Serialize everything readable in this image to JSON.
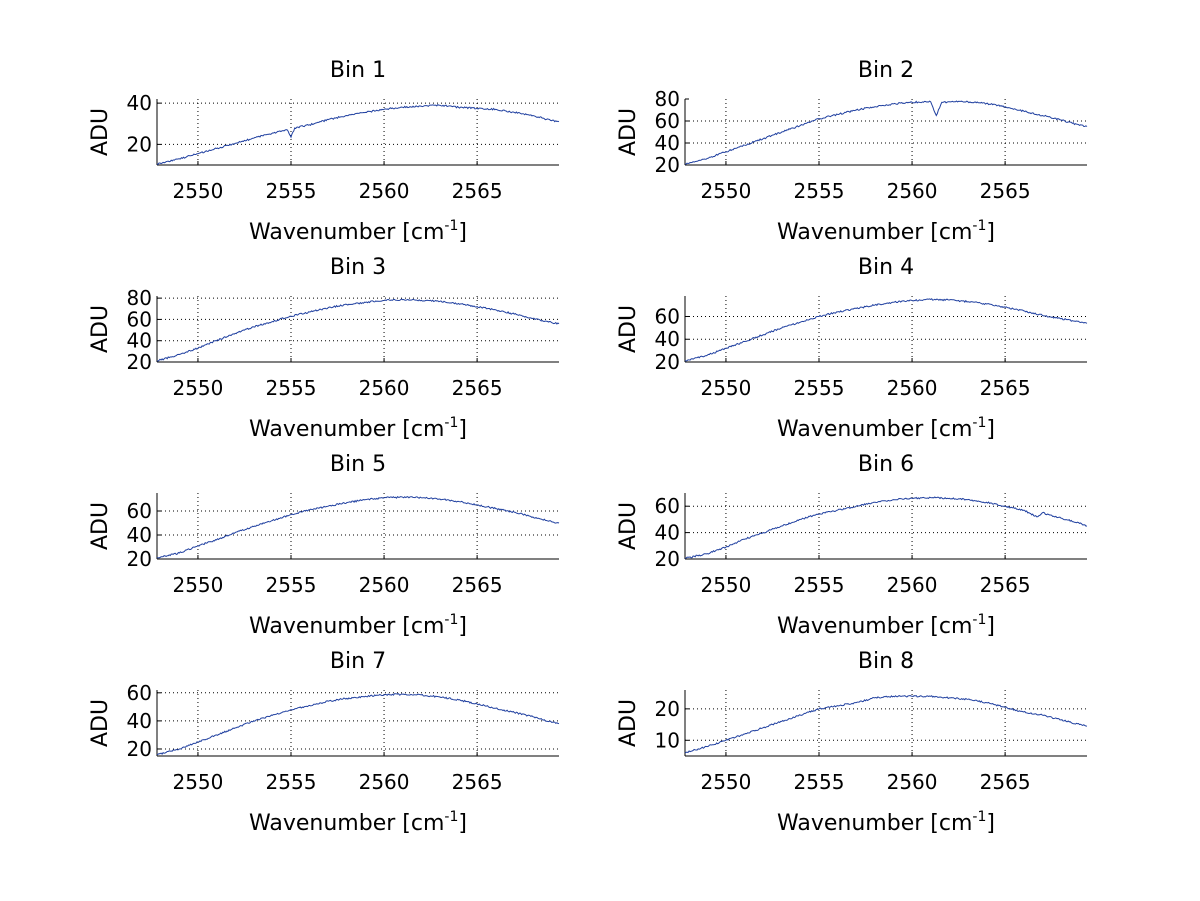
{
  "colors": {
    "series": "#2040a0",
    "axis": "#000000",
    "background": "#ffffff"
  },
  "chart_data": [
    {
      "type": "line",
      "title": "Bin 1",
      "xlabel": "Wavenumber [cm",
      "xlabel_sup": "-1",
      "xlabel_end": "]",
      "ylabel": "ADU",
      "xlim": [
        2547.8,
        2569.4
      ],
      "ylim": [
        10,
        42
      ],
      "xticks": [
        2550,
        2555,
        2560,
        2565
      ],
      "xtick_labels": [
        "2550",
        "2555",
        "2560",
        "2565"
      ],
      "yticks": [
        20,
        40
      ],
      "ytick_labels": [
        "20",
        "40"
      ],
      "grid": true,
      "series": [
        {
          "name": "Bin 1",
          "x": [
            2547.8,
            2549,
            2550,
            2551,
            2552,
            2553,
            2554,
            2554.8,
            2555,
            2555.2,
            2556,
            2557,
            2558,
            2559,
            2560,
            2561,
            2562,
            2563,
            2564,
            2565,
            2566,
            2567,
            2568,
            2569,
            2569.4
          ],
          "y": [
            10.5,
            13,
            15.5,
            18,
            20.5,
            23,
            25.5,
            27,
            23.5,
            28,
            29.5,
            32,
            34,
            35.5,
            37,
            38,
            38.5,
            39,
            38,
            37.5,
            37,
            35.5,
            34,
            31.5,
            31
          ]
        }
      ]
    },
    {
      "type": "line",
      "title": "Bin 2",
      "xlabel": "Wavenumber [cm",
      "xlabel_sup": "-1",
      "xlabel_end": "]",
      "ylabel": "ADU",
      "xlim": [
        2547.8,
        2569.4
      ],
      "ylim": [
        20,
        80
      ],
      "xticks": [
        2550,
        2555,
        2560,
        2565
      ],
      "xtick_labels": [
        "2550",
        "2555",
        "2560",
        "2565"
      ],
      "yticks": [
        20,
        40,
        60,
        80
      ],
      "ytick_labels": [
        "20",
        "40",
        "60",
        "80"
      ],
      "grid": true,
      "series": [
        {
          "name": "Bin 2",
          "x": [
            2547.8,
            2549,
            2550,
            2551,
            2552,
            2553,
            2554,
            2555,
            2556,
            2557,
            2558,
            2559,
            2560,
            2561,
            2561.3,
            2561.6,
            2562,
            2563,
            2564,
            2565,
            2566,
            2567,
            2568,
            2569,
            2569.4
          ],
          "y": [
            21,
            26,
            32,
            38,
            44,
            50,
            56,
            62,
            66,
            70,
            73,
            75.5,
            77,
            77.5,
            65,
            77,
            77.5,
            77.5,
            76,
            73,
            69,
            65,
            61,
            56,
            55
          ]
        }
      ]
    },
    {
      "type": "line",
      "title": "Bin 3",
      "xlabel": "Wavenumber [cm",
      "xlabel_sup": "-1",
      "xlabel_end": "]",
      "ylabel": "ADU",
      "xlim": [
        2547.8,
        2569.4
      ],
      "ylim": [
        20,
        82
      ],
      "xticks": [
        2550,
        2555,
        2560,
        2565
      ],
      "xtick_labels": [
        "2550",
        "2555",
        "2560",
        "2565"
      ],
      "yticks": [
        20,
        40,
        60,
        80
      ],
      "ytick_labels": [
        "20",
        "40",
        "60",
        "80"
      ],
      "grid": true,
      "series": [
        {
          "name": "Bin 3",
          "x": [
            2547.8,
            2549,
            2550,
            2551,
            2552,
            2553,
            2554,
            2555,
            2556,
            2557,
            2558,
            2559,
            2560,
            2561,
            2562,
            2563,
            2564,
            2565,
            2566,
            2567,
            2568,
            2569,
            2569.4
          ],
          "y": [
            21,
            27,
            33,
            40,
            47,
            53,
            58,
            63,
            67,
            71,
            74,
            76,
            78,
            78.5,
            78,
            77,
            75,
            72,
            69,
            65,
            61,
            57,
            56
          ]
        }
      ]
    },
    {
      "type": "line",
      "title": "Bin 4",
      "xlabel": "Wavenumber [cm",
      "xlabel_sup": "-1",
      "xlabel_end": "]",
      "ylabel": "ADU",
      "xlim": [
        2547.8,
        2569.4
      ],
      "ylim": [
        20,
        78
      ],
      "xticks": [
        2550,
        2555,
        2560,
        2565
      ],
      "xtick_labels": [
        "2550",
        "2555",
        "2560",
        "2565"
      ],
      "yticks": [
        20,
        40,
        60
      ],
      "ytick_labels": [
        "20",
        "40",
        "60"
      ],
      "grid": true,
      "series": [
        {
          "name": "Bin 4",
          "x": [
            2547.8,
            2549,
            2550,
            2551,
            2552,
            2553,
            2554,
            2555,
            2556,
            2557,
            2558,
            2559,
            2560,
            2561,
            2562,
            2563,
            2564,
            2565,
            2566,
            2567,
            2568,
            2569,
            2569.4
          ],
          "y": [
            21,
            26,
            32,
            38,
            44,
            50,
            55,
            60,
            64,
            67,
            70,
            72.5,
            74,
            75,
            74.5,
            73,
            71,
            68,
            65,
            61,
            58,
            55,
            54
          ]
        }
      ]
    },
    {
      "type": "line",
      "title": "Bin 5",
      "xlabel": "Wavenumber [cm",
      "xlabel_sup": "-1",
      "xlabel_end": "]",
      "ylabel": "ADU",
      "xlim": [
        2547.8,
        2569.4
      ],
      "ylim": [
        20,
        75
      ],
      "xticks": [
        2550,
        2555,
        2560,
        2565
      ],
      "xtick_labels": [
        "2550",
        "2555",
        "2560",
        "2565"
      ],
      "yticks": [
        20,
        40,
        60
      ],
      "ytick_labels": [
        "20",
        "40",
        "60"
      ],
      "grid": true,
      "series": [
        {
          "name": "Bin 5",
          "x": [
            2547.8,
            2549,
            2550,
            2551,
            2552,
            2553,
            2554,
            2555,
            2556,
            2557,
            2558,
            2559,
            2560,
            2561,
            2562,
            2563,
            2564,
            2565,
            2566,
            2567,
            2568,
            2569,
            2569.4
          ],
          "y": [
            21,
            25,
            31,
            36,
            42,
            47,
            52,
            57,
            61,
            64,
            67,
            69.5,
            71,
            71.5,
            71,
            70,
            68,
            65,
            62,
            59,
            55,
            51,
            50
          ]
        }
      ]
    },
    {
      "type": "line",
      "title": "Bin 6",
      "xlabel": "Wavenumber [cm",
      "xlabel_sup": "-1",
      "xlabel_end": "]",
      "ylabel": "ADU",
      "xlim": [
        2547.8,
        2569.4
      ],
      "ylim": [
        20,
        70
      ],
      "xticks": [
        2550,
        2555,
        2560,
        2565
      ],
      "xtick_labels": [
        "2550",
        "2555",
        "2560",
        "2565"
      ],
      "yticks": [
        20,
        40,
        60
      ],
      "ytick_labels": [
        "20",
        "40",
        "60"
      ],
      "grid": true,
      "series": [
        {
          "name": "Bin 6",
          "x": [
            2547.8,
            2549,
            2550,
            2551,
            2552,
            2553,
            2554,
            2555,
            2556,
            2557,
            2558,
            2559,
            2560,
            2561,
            2562,
            2563,
            2564,
            2565,
            2566,
            2566.7,
            2567,
            2568,
            2569,
            2569.4
          ],
          "y": [
            20.5,
            24,
            29,
            35,
            40,
            45,
            50,
            54,
            57,
            60,
            63,
            65,
            66,
            66.5,
            66,
            65,
            63,
            60,
            57,
            52,
            55,
            51,
            47,
            45
          ]
        }
      ]
    },
    {
      "type": "line",
      "title": "Bin 7",
      "xlabel": "Wavenumber [cm",
      "xlabel_sup": "-1",
      "xlabel_end": "]",
      "ylabel": "ADU",
      "xlim": [
        2547.8,
        2569.4
      ],
      "ylim": [
        15,
        62
      ],
      "xticks": [
        2550,
        2555,
        2560,
        2565
      ],
      "xtick_labels": [
        "2550",
        "2555",
        "2560",
        "2565"
      ],
      "yticks": [
        20,
        40,
        60
      ],
      "ytick_labels": [
        "20",
        "40",
        "60"
      ],
      "grid": true,
      "series": [
        {
          "name": "Bin 7",
          "x": [
            2547.8,
            2549,
            2550,
            2551,
            2552,
            2553,
            2554,
            2555,
            2556,
            2557,
            2558,
            2559,
            2560,
            2561,
            2562,
            2563,
            2564,
            2565,
            2566,
            2567,
            2568,
            2569,
            2569.4
          ],
          "y": [
            16,
            20,
            25,
            30,
            35,
            40,
            44,
            48,
            51,
            54,
            56,
            57.5,
            58.5,
            59,
            58.5,
            57,
            55,
            52,
            49,
            46,
            43,
            39,
            38
          ]
        }
      ]
    },
    {
      "type": "line",
      "title": "Bin 8",
      "xlabel": "Wavenumber [cm",
      "xlabel_sup": "-1",
      "xlabel_end": "]",
      "ylabel": "ADU",
      "xlim": [
        2547.8,
        2569.4
      ],
      "ylim": [
        5,
        26
      ],
      "xticks": [
        2550,
        2555,
        2560,
        2565
      ],
      "xtick_labels": [
        "2550",
        "2555",
        "2560",
        "2565"
      ],
      "yticks": [
        10,
        20
      ],
      "ytick_labels": [
        "10",
        "20"
      ],
      "grid": true,
      "series": [
        {
          "name": "Bin 8",
          "x": [
            2547.8,
            2549,
            2550,
            2551,
            2552,
            2553,
            2554,
            2555,
            2556,
            2557,
            2558,
            2559,
            2560,
            2561,
            2562,
            2563,
            2564,
            2565,
            2566,
            2567,
            2568,
            2569,
            2569.4
          ],
          "y": [
            6,
            8,
            10,
            12,
            14,
            16,
            18,
            20,
            21,
            22,
            23.5,
            24,
            24,
            24,
            23.5,
            23,
            22,
            20.5,
            19,
            18,
            16.5,
            15,
            14.5
          ]
        }
      ]
    }
  ]
}
